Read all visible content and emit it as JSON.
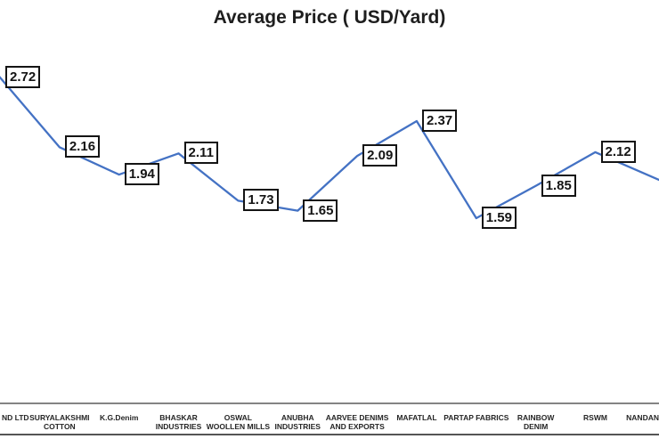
{
  "chart_data": {
    "type": "line",
    "title": "Average Price ( USD/Yard)",
    "series_color": "#4472C4",
    "legend": false,
    "gridlines": false,
    "y_axis_visible": false,
    "points": [
      {
        "category": [
          "ND LTD"
        ],
        "value": 2.72,
        "label": "2.72"
      },
      {
        "category": [
          "SURYALAKSHMI",
          "COTTON"
        ],
        "value": 2.16,
        "label": "2.16"
      },
      {
        "category": [
          "K.G.Denim"
        ],
        "value": 1.94,
        "label": "1.94"
      },
      {
        "category": [
          "BHASKAR",
          "INDUSTRIES"
        ],
        "value": 2.11,
        "label": "2.11"
      },
      {
        "category": [
          "OSWAL",
          "WOOLLEN MILLS"
        ],
        "value": 1.73,
        "label": "1.73"
      },
      {
        "category": [
          "ANUBHA",
          "INDUSTRIES"
        ],
        "value": 1.65,
        "label": "1.65"
      },
      {
        "category": [
          "AARVEE DENIMS",
          "AND EXPORTS"
        ],
        "value": 2.09,
        "label": "2.09"
      },
      {
        "category": [
          "MAFATLAL"
        ],
        "value": 2.37,
        "label": "2.37"
      },
      {
        "category": [
          "PARTAP FABRICS"
        ],
        "value": 1.59,
        "label": "1.59"
      },
      {
        "category": [
          "RAINBOW",
          "DENIM"
        ],
        "value": 1.85,
        "label": "1.85"
      },
      {
        "category": [
          "RSWM"
        ],
        "value": 2.12,
        "label": "2.12"
      },
      {
        "category": [
          "NANDAN"
        ],
        "value": null,
        "label": null
      }
    ]
  }
}
